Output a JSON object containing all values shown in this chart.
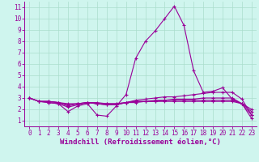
{
  "xlabel": "Windchill (Refroidissement éolien,°C)",
  "bg_color": "#cff5ee",
  "line_color": "#990099",
  "grid_color": "#aaddcc",
  "x_data": [
    0,
    1,
    2,
    3,
    4,
    5,
    6,
    7,
    8,
    9,
    10,
    11,
    12,
    13,
    14,
    15,
    16,
    17,
    18,
    19,
    20,
    21,
    22,
    23
  ],
  "lines": [
    [
      3.0,
      2.7,
      2.6,
      2.5,
      1.8,
      2.3,
      2.5,
      1.5,
      1.4,
      2.3,
      3.3,
      6.5,
      8.0,
      8.9,
      10.0,
      11.1,
      9.4,
      5.4,
      3.5,
      3.6,
      3.9,
      2.9,
      2.5,
      1.5
    ],
    [
      3.0,
      2.7,
      2.6,
      2.5,
      2.2,
      2.4,
      2.6,
      2.5,
      2.4,
      2.4,
      2.6,
      2.8,
      2.9,
      3.0,
      3.1,
      3.1,
      3.2,
      3.3,
      3.4,
      3.5,
      3.5,
      3.5,
      2.9,
      1.5
    ],
    [
      3.0,
      2.7,
      2.7,
      2.6,
      2.3,
      2.5,
      2.6,
      2.5,
      2.4,
      2.4,
      2.6,
      2.7,
      2.7,
      2.8,
      2.8,
      2.9,
      2.9,
      2.9,
      3.0,
      3.0,
      3.0,
      3.0,
      2.5,
      1.2
    ],
    [
      3.0,
      2.7,
      2.7,
      2.6,
      2.4,
      2.5,
      2.6,
      2.5,
      2.5,
      2.5,
      2.6,
      2.7,
      2.7,
      2.7,
      2.8,
      2.8,
      2.8,
      2.8,
      2.8,
      2.8,
      2.8,
      2.8,
      2.5,
      1.8
    ],
    [
      3.0,
      2.7,
      2.7,
      2.6,
      2.5,
      2.5,
      2.6,
      2.6,
      2.5,
      2.5,
      2.6,
      2.6,
      2.7,
      2.7,
      2.7,
      2.7,
      2.7,
      2.7,
      2.7,
      2.7,
      2.7,
      2.7,
      2.5,
      2.0
    ]
  ],
  "ylim": [
    0.5,
    11.5
  ],
  "xlim": [
    -0.5,
    23.5
  ],
  "yticks": [
    1,
    2,
    3,
    4,
    5,
    6,
    7,
    8,
    9,
    10,
    11
  ],
  "xticks": [
    0,
    1,
    2,
    3,
    4,
    5,
    6,
    7,
    8,
    9,
    10,
    11,
    12,
    13,
    14,
    15,
    16,
    17,
    18,
    19,
    20,
    21,
    22,
    23
  ],
  "tick_fontsize": 5.5,
  "xlabel_fontsize": 6.5,
  "marker": "+"
}
